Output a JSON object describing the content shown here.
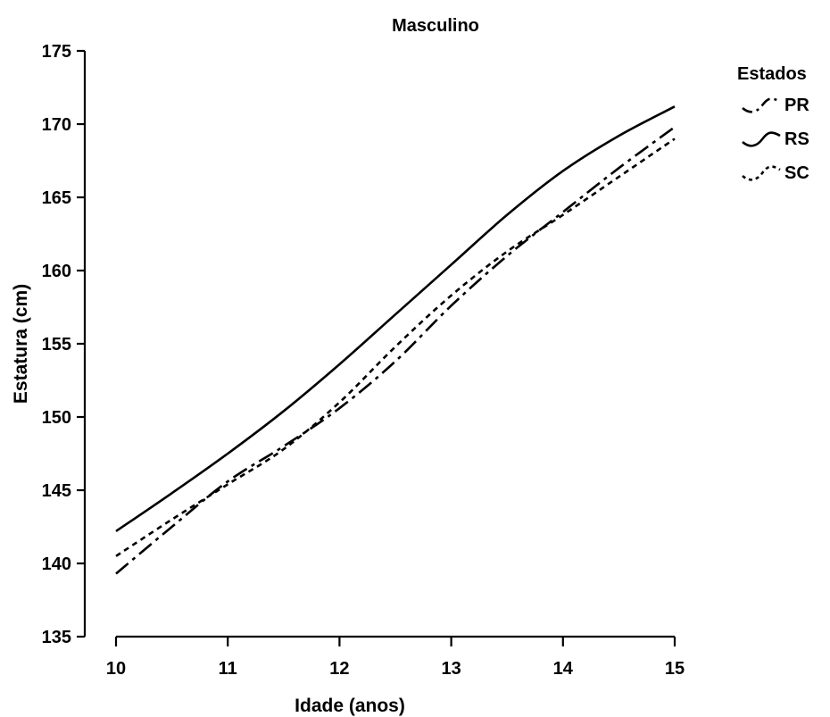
{
  "chart_data": {
    "type": "line",
    "title": "Masculino",
    "xlabel": "Idade (anos)",
    "ylabel": "Estatura (cm)",
    "xlim": [
      10,
      15
    ],
    "ylim": [
      135,
      175
    ],
    "xticks": [
      10,
      11,
      12,
      13,
      14,
      15
    ],
    "yticks": [
      135,
      140,
      145,
      150,
      155,
      160,
      165,
      170,
      175
    ],
    "grid": false,
    "legend": {
      "title": "Estados",
      "placement": "top-right"
    },
    "x": [
      10,
      10.5,
      11,
      11.5,
      12,
      12.5,
      13,
      13.5,
      14,
      14.5,
      15
    ],
    "series": [
      {
        "name": "PR",
        "line_style": "dash-dot",
        "values": [
          139.3,
          142.5,
          145.6,
          148.0,
          150.6,
          153.8,
          157.6,
          161.0,
          164.0,
          167.0,
          169.8
        ]
      },
      {
        "name": "RS",
        "line_style": "solid",
        "values": [
          142.2,
          144.8,
          147.5,
          150.4,
          153.6,
          157.0,
          160.4,
          163.8,
          166.8,
          169.2,
          171.2
        ]
      },
      {
        "name": "SC",
        "line_style": "dotted",
        "values": [
          140.5,
          143.0,
          145.4,
          147.8,
          151.0,
          154.8,
          158.3,
          161.3,
          163.8,
          166.4,
          169.0
        ]
      }
    ]
  }
}
